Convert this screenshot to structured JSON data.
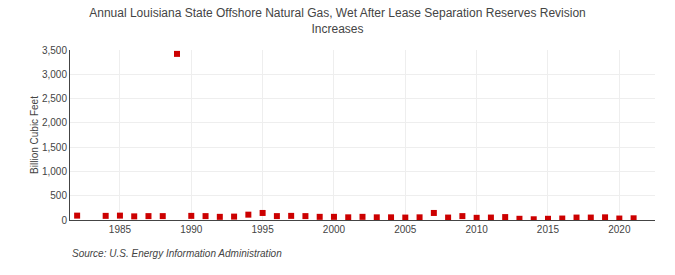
{
  "chart_data": {
    "type": "scatter",
    "title": "Annual Louisiana State Offshore Natural Gas, Wet After Lease Separation Reserves Revision\nIncreases",
    "ylabel": "Billion Cubic Feet",
    "annotations": [
      "Source: U.S. Energy Information Administration"
    ],
    "x": [
      1982,
      1984,
      1985,
      1986,
      1987,
      1988,
      1989,
      1990,
      1991,
      1992,
      1993,
      1994,
      1995,
      1996,
      1997,
      1998,
      1999,
      2000,
      2001,
      2002,
      2003,
      2004,
      2005,
      2006,
      2007,
      2008,
      2009,
      2010,
      2011,
      2012,
      2013,
      2014,
      2015,
      2016,
      2017,
      2018,
      2019,
      2020,
      2021
    ],
    "values": [
      90,
      85,
      90,
      75,
      80,
      80,
      3420,
      85,
      80,
      65,
      70,
      110,
      145,
      80,
      85,
      80,
      65,
      65,
      55,
      65,
      55,
      55,
      50,
      55,
      145,
      50,
      80,
      45,
      50,
      60,
      25,
      15,
      25,
      30,
      50,
      50,
      55,
      30,
      35
    ],
    "color": "#cc0000",
    "marker": "square",
    "xlim": [
      1981.5,
      2022.5
    ],
    "xticks": [
      1985,
      1990,
      1995,
      2000,
      2005,
      2010,
      2015,
      2020
    ],
    "ylim": [
      0,
      3500
    ],
    "yticks": [
      0,
      500,
      {
        "value": 1000,
        "label": "1,000"
      },
      {
        "value": 1500,
        "label": "1,500"
      },
      {
        "value": 2000,
        "label": "2,000"
      },
      {
        "value": 2500,
        "label": "2,500"
      },
      {
        "value": 3000,
        "label": "3,000"
      },
      {
        "value": 3500,
        "label": "3,500"
      }
    ],
    "grid": true
  }
}
